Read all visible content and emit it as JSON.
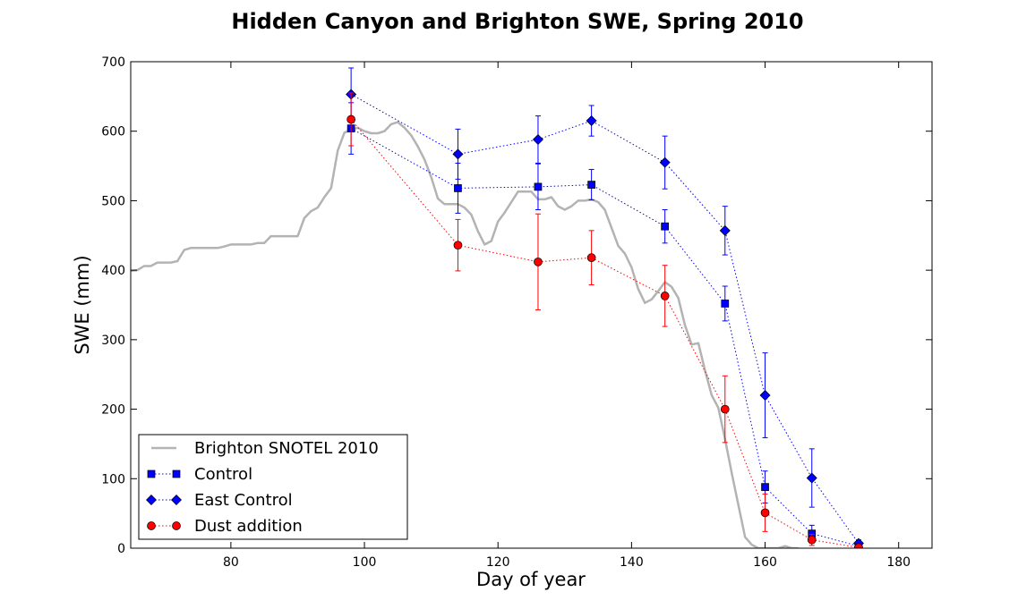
{
  "chart_data": {
    "type": "line",
    "title": "Hidden Canyon and Brighton SWE, Spring 2010",
    "xlabel": "Day of year",
    "ylabel": "SWE (mm)",
    "xlim": [
      65,
      185
    ],
    "ylim": [
      0,
      700
    ],
    "xticks": [
      80,
      100,
      120,
      140,
      160,
      180
    ],
    "yticks": [
      0,
      100,
      200,
      300,
      400,
      500,
      600,
      700
    ],
    "grid": false,
    "legend_position": "lower-left",
    "series": [
      {
        "name": "Brighton SNOTEL 2010",
        "style": "line",
        "color": "#b3b3b3",
        "points": [
          [
            65,
            399
          ],
          [
            66,
            400
          ],
          [
            67,
            406
          ],
          [
            68,
            406
          ],
          [
            69,
            411
          ],
          [
            70,
            411
          ],
          [
            71,
            411
          ],
          [
            72,
            413
          ],
          [
            73,
            429
          ],
          [
            74,
            432
          ],
          [
            75,
            432
          ],
          [
            76,
            432
          ],
          [
            77,
            432
          ],
          [
            78,
            432
          ],
          [
            79,
            434
          ],
          [
            80,
            437
          ],
          [
            81,
            437
          ],
          [
            82,
            437
          ],
          [
            83,
            437
          ],
          [
            84,
            439
          ],
          [
            85,
            439
          ],
          [
            86,
            449
          ],
          [
            87,
            449
          ],
          [
            88,
            449
          ],
          [
            89,
            449
          ],
          [
            90,
            449
          ],
          [
            91,
            475
          ],
          [
            92,
            485
          ],
          [
            93,
            490
          ],
          [
            94,
            505
          ],
          [
            95,
            518
          ],
          [
            96,
            572
          ],
          [
            97,
            598
          ],
          [
            98,
            602
          ],
          [
            99,
            605
          ],
          [
            100,
            600
          ],
          [
            101,
            597
          ],
          [
            102,
            597
          ],
          [
            103,
            600
          ],
          [
            104,
            610
          ],
          [
            105,
            613
          ],
          [
            106,
            605
          ],
          [
            107,
            594
          ],
          [
            108,
            578
          ],
          [
            109,
            559
          ],
          [
            110,
            534
          ],
          [
            111,
            503
          ],
          [
            112,
            495
          ],
          [
            113,
            495
          ],
          [
            114,
            495
          ],
          [
            115,
            490
          ],
          [
            116,
            480
          ],
          [
            117,
            456
          ],
          [
            118,
            437
          ],
          [
            119,
            442
          ],
          [
            120,
            470
          ],
          [
            121,
            483
          ],
          [
            122,
            498
          ],
          [
            123,
            513
          ],
          [
            124,
            513
          ],
          [
            125,
            513
          ],
          [
            126,
            502
          ],
          [
            127,
            502
          ],
          [
            128,
            505
          ],
          [
            129,
            492
          ],
          [
            130,
            487
          ],
          [
            131,
            492
          ],
          [
            132,
            500
          ],
          [
            133,
            500
          ],
          [
            134,
            502
          ],
          [
            135,
            498
          ],
          [
            136,
            487
          ],
          [
            137,
            461
          ],
          [
            138,
            435
          ],
          [
            139,
            424
          ],
          [
            140,
            404
          ],
          [
            141,
            373
          ],
          [
            142,
            353
          ],
          [
            143,
            358
          ],
          [
            144,
            370
          ],
          [
            145,
            383
          ],
          [
            146,
            376
          ],
          [
            147,
            360
          ],
          [
            148,
            321
          ],
          [
            149,
            293
          ],
          [
            150,
            295
          ],
          [
            151,
            256
          ],
          [
            152,
            220
          ],
          [
            153,
            202
          ],
          [
            154,
            157
          ],
          [
            155,
            108
          ],
          [
            156,
            62
          ],
          [
            157,
            16
          ],
          [
            158,
            5
          ],
          [
            159,
            0
          ],
          [
            160,
            0
          ],
          [
            161,
            0
          ],
          [
            162,
            0
          ],
          [
            163,
            3
          ],
          [
            164,
            0
          ],
          [
            165,
            0
          ]
        ]
      },
      {
        "name": "Control",
        "style": "dotted",
        "marker": "square",
        "color": "#0000ff",
        "x": [
          98,
          114,
          126,
          134,
          145,
          154,
          160,
          167,
          174
        ],
        "y": [
          604,
          518,
          520,
          523,
          463,
          352,
          88,
          21,
          3
        ],
        "err": [
          37,
          36,
          33,
          22,
          24,
          25,
          23,
          12,
          4
        ]
      },
      {
        "name": "East Control",
        "style": "dotted",
        "marker": "diamond",
        "color": "#0000ff",
        "x": [
          98,
          114,
          126,
          134,
          145,
          154,
          160,
          167,
          174
        ],
        "y": [
          653,
          567,
          588,
          615,
          555,
          457,
          220,
          101,
          7
        ],
        "err": [
          38,
          36,
          34,
          22,
          38,
          35,
          61,
          42,
          5
        ]
      },
      {
        "name": "Dust addition",
        "style": "dotted",
        "marker": "circle",
        "color": "#ff0000",
        "x": [
          98,
          114,
          126,
          134,
          145,
          154,
          160,
          167,
          174
        ],
        "y": [
          617,
          436,
          412,
          418,
          363,
          200,
          51,
          12,
          1
        ],
        "err": [
          38,
          37,
          69,
          39,
          44,
          48,
          27,
          8,
          3
        ]
      }
    ]
  }
}
